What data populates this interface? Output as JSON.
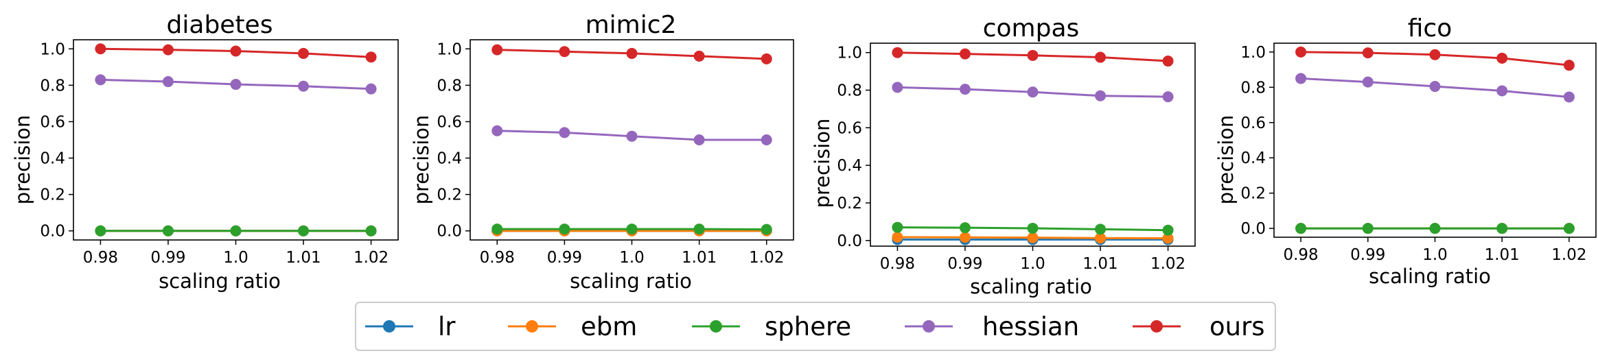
{
  "colors": {
    "lr": "#1f77b4",
    "ebm": "#ff7f0e",
    "sphere": "#2ca02c",
    "hessian": "#9467bd",
    "ours": "#d62728"
  },
  "legend": {
    "placement": "bottom-center",
    "entries": [
      "lr",
      "ebm",
      "sphere",
      "hessian",
      "ours"
    ]
  },
  "chart_data": [
    {
      "type": "line",
      "title": "diabetes",
      "xlabel": "scaling ratio",
      "ylabel": "precision",
      "x": [
        0.98,
        0.99,
        1.0,
        1.01,
        1.02
      ],
      "x_tick_labels": [
        "0.98",
        "0.99",
        "1.0",
        "1.01",
        "1.02"
      ],
      "y_ticks": [
        0.0,
        0.2,
        0.4,
        0.6,
        0.8,
        1.0
      ],
      "y_tick_labels": [
        "0.0",
        "0.2",
        "0.4",
        "0.6",
        "0.8",
        "1.0"
      ],
      "ylim": [
        -0.05,
        1.05
      ],
      "series": [
        {
          "name": "lr",
          "values": [
            0.0,
            0.0,
            0.0,
            0.0,
            0.0
          ]
        },
        {
          "name": "ebm",
          "values": [
            0.0,
            0.0,
            0.0,
            0.0,
            0.0
          ]
        },
        {
          "name": "sphere",
          "values": [
            0.0,
            0.0,
            0.0,
            0.0,
            0.0
          ]
        },
        {
          "name": "hessian",
          "values": [
            0.83,
            0.82,
            0.805,
            0.795,
            0.78
          ]
        },
        {
          "name": "ours",
          "values": [
            1.0,
            0.995,
            0.988,
            0.975,
            0.955
          ]
        }
      ]
    },
    {
      "type": "line",
      "title": "mimic2",
      "xlabel": "scaling ratio",
      "ylabel": "precision",
      "x": [
        0.98,
        0.99,
        1.0,
        1.01,
        1.02
      ],
      "x_tick_labels": [
        "0.98",
        "0.99",
        "1.0",
        "1.01",
        "1.02"
      ],
      "y_ticks": [
        0.0,
        0.2,
        0.4,
        0.6,
        0.8,
        1.0
      ],
      "y_tick_labels": [
        "0.0",
        "0.2",
        "0.4",
        "0.6",
        "0.8",
        "1.0"
      ],
      "ylim": [
        -0.05,
        1.05
      ],
      "series": [
        {
          "name": "lr",
          "values": [
            0.0,
            0.0,
            0.0,
            0.0,
            0.0
          ]
        },
        {
          "name": "ebm",
          "values": [
            0.0,
            0.0,
            0.0,
            0.0,
            0.0
          ]
        },
        {
          "name": "sphere",
          "values": [
            0.01,
            0.01,
            0.01,
            0.01,
            0.008
          ]
        },
        {
          "name": "hessian",
          "values": [
            0.55,
            0.54,
            0.52,
            0.5,
            0.5
          ]
        },
        {
          "name": "ours",
          "values": [
            0.995,
            0.985,
            0.975,
            0.96,
            0.945
          ]
        }
      ]
    },
    {
      "type": "line",
      "title": "compas",
      "xlabel": "scaling ratio",
      "ylabel": "precision",
      "x": [
        0.98,
        0.99,
        1.0,
        1.01,
        1.02
      ],
      "x_tick_labels": [
        "0.98",
        "0.99",
        "1.0",
        "1.01",
        "1.02"
      ],
      "y_ticks": [
        0.0,
        0.2,
        0.4,
        0.6,
        0.8,
        1.0
      ],
      "y_tick_labels": [
        "0.0",
        "0.2",
        "0.4",
        "0.6",
        "0.8",
        "1.0"
      ],
      "ylim": [
        -0.03,
        1.05
      ],
      "series": [
        {
          "name": "lr",
          "values": [
            0.005,
            0.005,
            0.005,
            0.005,
            0.005
          ]
        },
        {
          "name": "ebm",
          "values": [
            0.018,
            0.017,
            0.015,
            0.013,
            0.012
          ]
        },
        {
          "name": "sphere",
          "values": [
            0.07,
            0.068,
            0.065,
            0.06,
            0.055
          ]
        },
        {
          "name": "hessian",
          "values": [
            0.815,
            0.805,
            0.79,
            0.77,
            0.765
          ]
        },
        {
          "name": "ours",
          "values": [
            1.0,
            0.993,
            0.985,
            0.975,
            0.955
          ]
        }
      ]
    },
    {
      "type": "line",
      "title": "fico",
      "xlabel": "scaling ratio",
      "ylabel": "precision",
      "x": [
        0.98,
        0.99,
        1.0,
        1.01,
        1.02
      ],
      "x_tick_labels": [
        "0.98",
        "0.99",
        "1.0",
        "1.01",
        "1.02"
      ],
      "y_ticks": [
        0.0,
        0.2,
        0.4,
        0.6,
        0.8,
        1.0
      ],
      "y_tick_labels": [
        "0.0",
        "0.2",
        "0.4",
        "0.6",
        "0.8",
        "1.0"
      ],
      "ylim": [
        -0.05,
        1.05
      ],
      "series": [
        {
          "name": "lr",
          "values": [
            0.0,
            0.0,
            0.0,
            0.0,
            0.0
          ]
        },
        {
          "name": "ebm",
          "values": [
            0.0,
            0.0,
            0.0,
            0.0,
            0.0
          ]
        },
        {
          "name": "sphere",
          "values": [
            0.0,
            0.0,
            0.0,
            0.0,
            0.0
          ]
        },
        {
          "name": "hessian",
          "values": [
            0.85,
            0.83,
            0.805,
            0.78,
            0.745
          ]
        },
        {
          "name": "ours",
          "values": [
            1.0,
            0.995,
            0.985,
            0.965,
            0.925
          ]
        }
      ]
    }
  ]
}
